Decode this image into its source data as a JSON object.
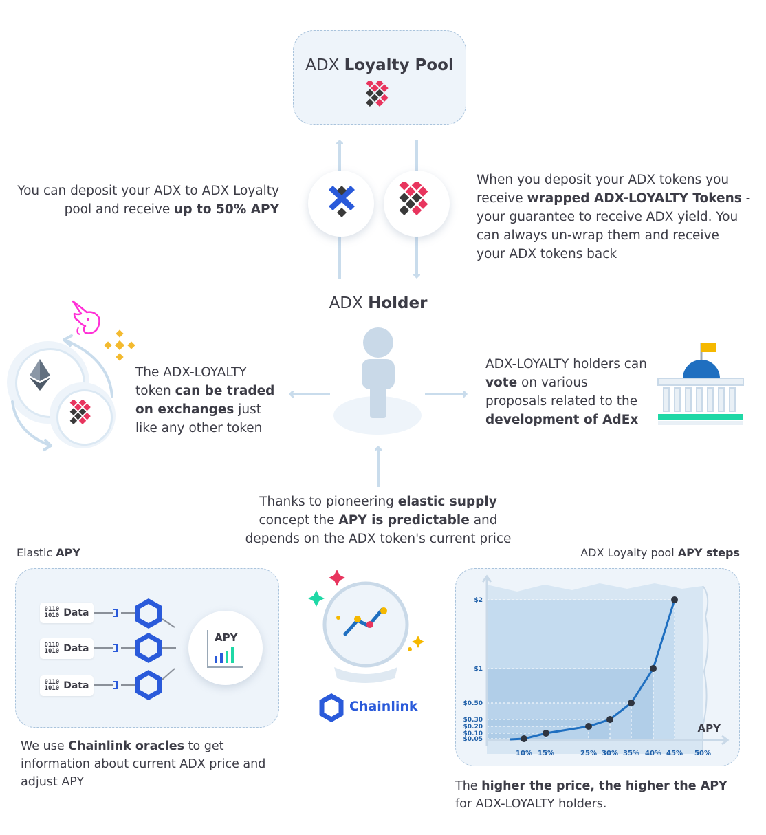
{
  "pool": {
    "title_pre": "ADX ",
    "title_bold": "Loyalty Pool"
  },
  "holder": {
    "title_pre": "ADX ",
    "title_bold": "Holder"
  },
  "deposit_text": {
    "t1": "You can deposit your ADX to ADX Loyalty pool and receive ",
    "b1": "up to 50% APY"
  },
  "wrapped_text": {
    "t1": "When you deposit your ADX tokens you receive ",
    "b1": "wrapped ADX-LOYALTY Tokens",
    "t2": " - your guarantee to receive ADX yield. You can always un-wrap them and receive your ADX tokens back"
  },
  "traded_text": {
    "t1": "The ADX-LOYALTY token ",
    "b1": "can be traded on exchanges",
    "t2": " just like any other token"
  },
  "vote_text": {
    "t1": "ADX-LOYALTY holders can ",
    "b1": "vote",
    "t2": " on various proposals related to the ",
    "b2": "development of AdEx"
  },
  "elastic_text": {
    "t1": "Thanks to pioneering ",
    "b1": "elastic supply",
    "t2": " concept the ",
    "b2": "APY is predictable",
    "t3": " and depends on the ADX token's current price"
  },
  "elastic_apy": {
    "title_pre": "Elastic ",
    "title_bold": "APY",
    "data_label": "Data",
    "data_icon": "0110\n1010",
    "apy_label": "APY"
  },
  "chainlink_text": {
    "t1": "We use ",
    "b1": "Chainlink oracles",
    "t2": " to get information about current ADX price and adjust APY"
  },
  "chainlink_logo": {
    "label": "Chainlink"
  },
  "apy_steps": {
    "title_pre": "ADX Loyalty pool ",
    "title_bold": "APY steps"
  },
  "higher_text": {
    "t1": "The ",
    "b1": "higher the price, the higher the APY",
    "t2": " for ADX-LOYALTY holders."
  },
  "chart_data": {
    "type": "line",
    "title": "",
    "xlabel": "APY",
    "ylabel": "",
    "x_ticks": [
      "10%",
      "15%",
      "25%",
      "30%",
      "35%",
      "40%",
      "45%",
      "50%"
    ],
    "y_ticks": [
      "$0.05",
      "$0.10",
      "$0.20",
      "$0.30",
      "$0.50",
      "$1",
      "$2"
    ],
    "points": [
      {
        "x": "10%",
        "y": 0.05
      },
      {
        "x": "15%",
        "y": 0.1
      },
      {
        "x": "25%",
        "y": 0.2
      },
      {
        "x": "30%",
        "y": 0.3
      },
      {
        "x": "35%",
        "y": 0.5
      },
      {
        "x": "40%",
        "y": 1
      },
      {
        "x": "45%",
        "y": 2
      }
    ]
  },
  "colors": {
    "accent_blue": "#2a5ada",
    "line_blue": "#1f6fc0",
    "heart_red": "#e8355e",
    "heart_dark": "#3a3a3a",
    "arrow": "#c9dcec",
    "green": "#1fd8a6"
  },
  "icons": [
    "adx-token-icon",
    "loyalty-heart-icon",
    "ethereum-icon",
    "uniswap-icon",
    "binance-icon",
    "parliament-icon",
    "chainlink-icon",
    "crystal-ball-icon",
    "person-icon"
  ]
}
